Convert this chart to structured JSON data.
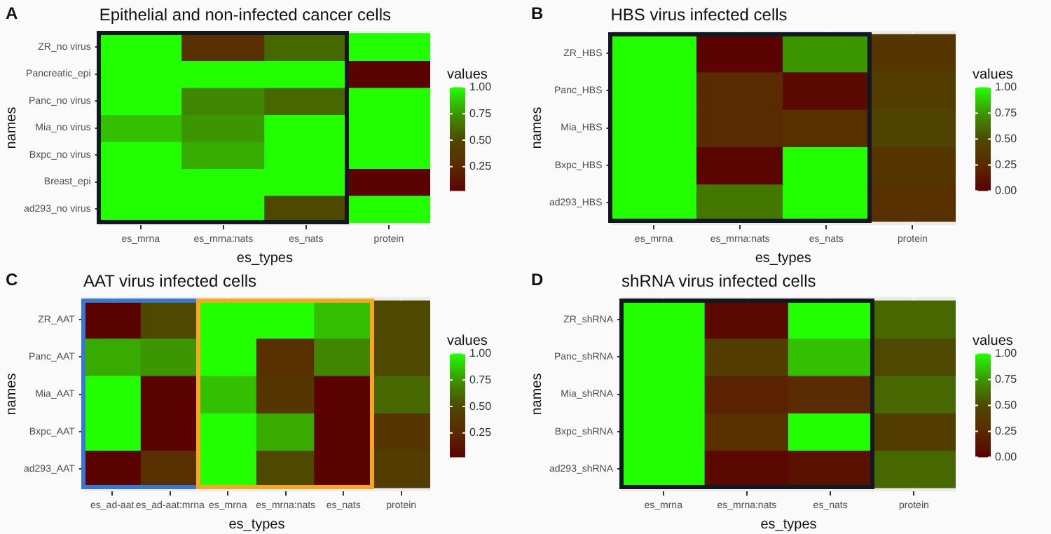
{
  "chart_data": [
    {
      "type": "heatmap",
      "title": "Epithelial and non-infected cancer cells",
      "annotations": [
        "A"
      ],
      "xlabel": "es_types",
      "ylabel": "names",
      "clabel": "values",
      "categories": [
        "es_mrna",
        "es_mrna:nats",
        "es_nats",
        "protein"
      ],
      "y_categories": [
        "ZR_no virus",
        "Pancreatic_epi",
        "Panc_no virus",
        "Mia_no virus",
        "Bxpc_no virus",
        "Breast_epi",
        "ad293_no virus"
      ],
      "cells": [
        [
          1,
          0.3,
          0.6,
          1
        ],
        [
          1,
          1,
          1,
          0.02
        ],
        [
          1,
          0.7,
          0.6,
          1
        ],
        [
          0.85,
          0.75,
          1,
          1
        ],
        [
          1,
          0.8,
          1,
          1
        ],
        [
          1,
          1,
          1,
          0.02
        ],
        [
          1,
          1,
          0.5,
          1
        ]
      ],
      "clim": [
        0.02,
        1
      ],
      "cticks": [
        {
          "value": 0.25,
          "label": "0.25"
        },
        {
          "value": 0.5,
          "label": "0.50"
        },
        {
          "value": 0.75,
          "label": "0.75"
        },
        {
          "value": 1,
          "label": "1.00"
        }
      ],
      "grid": true
    },
    {
      "type": "heatmap",
      "title": "HBS virus infected cells",
      "annotations": [
        "B"
      ],
      "xlabel": "es_types",
      "ylabel": "names",
      "clabel": "values",
      "categories": [
        "es_mrna",
        "es_mrna:nats",
        "es_nats",
        "protein"
      ],
      "y_categories": [
        "ZR_HBS",
        "Panc_HBS",
        "Mia_HBS",
        "Bxpc_HBS",
        "ad293_HBS"
      ],
      "cells": [
        [
          1,
          0.02,
          0.75,
          0.35
        ],
        [
          1,
          0.25,
          0.05,
          0.4
        ],
        [
          1,
          0.25,
          0.3,
          0.45
        ],
        [
          1,
          0.03,
          1,
          0.35
        ],
        [
          1,
          0.65,
          1,
          0.3
        ]
      ],
      "clim": [
        0,
        1
      ],
      "cticks": [
        {
          "value": 0,
          "label": "0.00"
        },
        {
          "value": 0.25,
          "label": "0.25"
        },
        {
          "value": 0.5,
          "label": "0.50"
        },
        {
          "value": 0.75,
          "label": "0.75"
        },
        {
          "value": 1,
          "label": "1.00"
        }
      ],
      "grid": true
    },
    {
      "type": "heatmap",
      "title": "AAT virus infected cells",
      "annotations": [
        "C"
      ],
      "xlabel": "es_types",
      "ylabel": "names",
      "clabel": "values",
      "categories": [
        "es_ad-aat",
        "es_ad-aat:mrna",
        "es_mrna",
        "es_mrna:nats",
        "es_nats",
        "protein"
      ],
      "y_categories": [
        "ZR_AAT",
        "Panc_AAT",
        "Mia_AAT",
        "Bxpc_AAT",
        "ad293_AAT"
      ],
      "cells": [
        [
          0.02,
          0.5,
          1,
          1,
          0.85,
          0.5
        ],
        [
          0.8,
          0.75,
          1,
          0.3,
          0.7,
          0.5
        ],
        [
          1,
          0.02,
          0.85,
          0.35,
          0.02,
          0.6
        ],
        [
          1,
          0.02,
          1,
          0.8,
          0.02,
          0.35
        ],
        [
          0.02,
          0.3,
          1,
          0.5,
          0.02,
          0.4
        ]
      ],
      "clim": [
        0.02,
        1
      ],
      "cticks": [
        {
          "value": 0.25,
          "label": "0.25"
        },
        {
          "value": 0.5,
          "label": "0.50"
        },
        {
          "value": 0.75,
          "label": "0.75"
        },
        {
          "value": 1,
          "label": "1.00"
        }
      ],
      "grid": true
    },
    {
      "type": "heatmap",
      "title": "shRNA virus infected cells",
      "annotations": [
        "D"
      ],
      "xlabel": "es_types",
      "ylabel": "names",
      "clabel": "values",
      "categories": [
        "es_mrna",
        "es_mrna:nats",
        "es_nats",
        "protein"
      ],
      "y_categories": [
        "ZR_shRNA",
        "Panc_shRNA",
        "Mia_shRNA",
        "Bxpc_shRNA",
        "ad293_shRNA"
      ],
      "cells": [
        [
          1,
          0.05,
          1,
          0.6
        ],
        [
          1,
          0.4,
          0.85,
          0.5
        ],
        [
          1,
          0.2,
          0.25,
          0.6
        ],
        [
          1,
          0.3,
          1,
          0.4
        ],
        [
          1,
          0.05,
          0.1,
          0.6
        ]
      ],
      "clim": [
        0,
        1
      ],
      "cticks": [
        {
          "value": 0,
          "label": "0.00"
        },
        {
          "value": 0.25,
          "label": "0.25"
        },
        {
          "value": 0.5,
          "label": "0.50"
        },
        {
          "value": 0.75,
          "label": "0.75"
        },
        {
          "value": 1,
          "label": "1.00"
        }
      ],
      "grid": true
    }
  ]
}
